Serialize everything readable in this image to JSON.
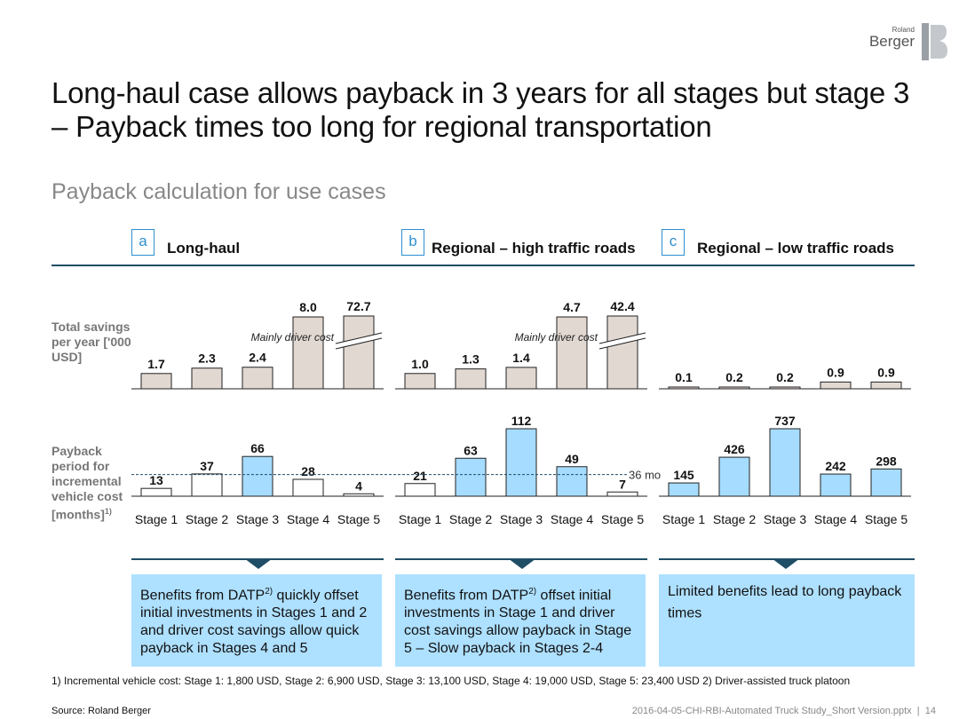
{
  "logo": {
    "small": "Roland",
    "big": "Berger"
  },
  "title": "Long-haul case allows payback in 3 years for all stages but stage 3 – Payback times too long for regional transportation",
  "subtitle": "Payback calculation for use cases",
  "row_labels": {
    "savings": "Total savings per year ['000 USD]",
    "payback": "Payback period for incremental vehicle cost [months]",
    "payback_sup": "1)"
  },
  "reference_line_label": "36 mo",
  "colors": {
    "savings_bar": "#e1d8d2",
    "payback_bar": "#a6dcff",
    "accent": "#2d8fd2",
    "dark": "#1f4e66",
    "callout": "#aee0ff"
  },
  "chart_data": [
    {
      "type": "bar",
      "tag": "a",
      "title": "Long-haul",
      "categories": [
        "Stage 1",
        "Stage 2",
        "Stage 3",
        "Stage 4",
        "Stage 5"
      ],
      "savings": {
        "values": [
          1.7,
          2.3,
          2.4,
          8.0,
          72.7
        ],
        "broken_axis_index": 4,
        "annotation": "Mainly driver cost"
      },
      "payback": {
        "values": [
          13,
          37,
          66,
          28,
          4
        ],
        "highlighted": [
          false,
          false,
          true,
          false,
          false
        ],
        "reference": 36
      },
      "callout": {
        "before": "Benefits from DATP",
        "sup": "2)",
        "after": " quickly offset initial investments in Stages 1 and 2 and driver cost savings allow quick payback in Stages 4 and 5"
      }
    },
    {
      "type": "bar",
      "tag": "b",
      "title": "Regional – high traffic roads",
      "categories": [
        "Stage 1",
        "Stage 2",
        "Stage 3",
        "Stage 4",
        "Stage 5"
      ],
      "savings": {
        "values": [
          1.0,
          1.3,
          1.4,
          4.7,
          42.4
        ],
        "broken_axis_index": 4,
        "annotation": "Mainly driver cost"
      },
      "payback": {
        "values": [
          21,
          63,
          112,
          49,
          7
        ],
        "highlighted": [
          false,
          true,
          true,
          true,
          false
        ],
        "reference": 36
      },
      "callout": {
        "before": "Benefits from DATP",
        "sup": "2)",
        "after": " offset initial investments in Stage 1 and driver cost savings allow payback in Stage 5 – Slow payback in Stages 2-4"
      }
    },
    {
      "type": "bar",
      "tag": "c",
      "title": "Regional – low traffic roads",
      "categories": [
        "Stage 1",
        "Stage 2",
        "Stage 3",
        "Stage 4",
        "Stage 5"
      ],
      "savings": {
        "values": [
          0.1,
          0.2,
          0.2,
          0.9,
          0.9
        ],
        "broken_axis_index": null,
        "annotation": ""
      },
      "payback": {
        "values": [
          145,
          426,
          737,
          242,
          298
        ],
        "highlighted": [
          true,
          true,
          true,
          true,
          true
        ],
        "reference": null
      },
      "callout": {
        "before": "Limited benefits lead to long payback times",
        "sup": "",
        "after": ""
      }
    }
  ],
  "footnote": "1) Incremental vehicle cost: Stage 1: 1,800 USD, Stage 2: 6,900 USD, Stage 3: 13,100 USD, Stage 4: 19,000 USD, Stage 5: 23,400 USD  2) Driver-assisted truck platoon",
  "source": "Source: Roland Berger",
  "filename": "2016-04-05-CHI-RBI-Automated Truck Study_Short Version.pptx",
  "page_number": "14"
}
